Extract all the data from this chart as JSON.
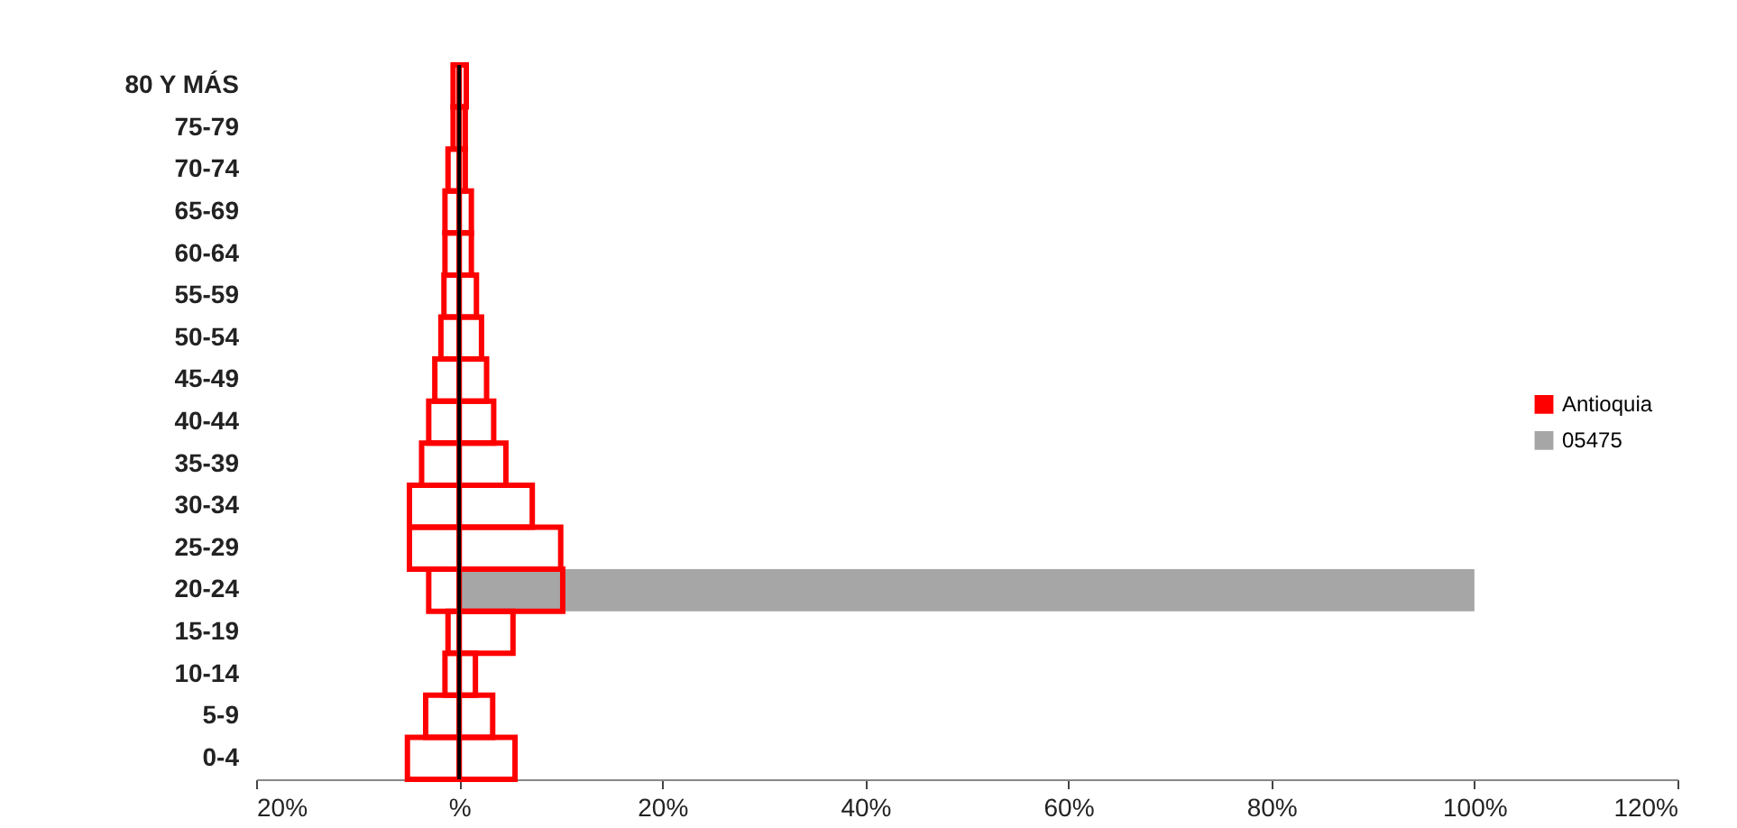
{
  "chart_data": {
    "type": "bar",
    "orientation": "horizontal",
    "categories": [
      "80 Y MÁS",
      "75-79",
      "70-74",
      "65-69",
      "60-64",
      "55-59",
      "50-54",
      "45-49",
      "40-44",
      "35-39",
      "30-34",
      "25-29",
      "20-24",
      "15-19",
      "10-14",
      "5-9",
      "0-4"
    ],
    "series": [
      {
        "name": "Antioquia",
        "color": "#ff0000",
        "values": [
          0.7,
          0.6,
          0.6,
          1.2,
          1.2,
          1.7,
          2.2,
          2.7,
          3.4,
          4.6,
          7.2,
          10.0,
          10.2,
          5.3,
          1.6,
          3.3,
          5.5
        ]
      },
      {
        "color": "#ff0000",
        "values": [
          -0.6,
          -0.6,
          -1.1,
          -1.4,
          -1.4,
          -1.5,
          -1.8,
          -2.4,
          -3.0,
          -3.7,
          -4.9,
          -4.9,
          -3.0,
          -1.1,
          -1.4,
          -3.3,
          -5.1
        ]
      },
      {
        "name": "05475",
        "color": "#a6a6a6",
        "values": [
          0,
          0,
          0,
          0,
          0,
          0,
          0,
          0,
          0,
          0,
          0,
          0,
          100,
          0,
          0,
          0,
          0
        ]
      }
    ],
    "xlim": [
      -20,
      120
    ],
    "xticks": [
      {
        "value": -20,
        "label": "20%"
      },
      {
        "value": 0,
        "label": "%"
      },
      {
        "value": 20,
        "label": "20%"
      },
      {
        "value": 40,
        "label": "40%"
      },
      {
        "value": 60,
        "label": "60%"
      },
      {
        "value": 80,
        "label": "80%"
      },
      {
        "value": 100,
        "label": "100%"
      },
      {
        "value": 120,
        "label": "120%"
      }
    ],
    "ref_lines": [
      {
        "axis": "x",
        "value": 0,
        "color": "#000000"
      }
    ],
    "legend": "right"
  }
}
